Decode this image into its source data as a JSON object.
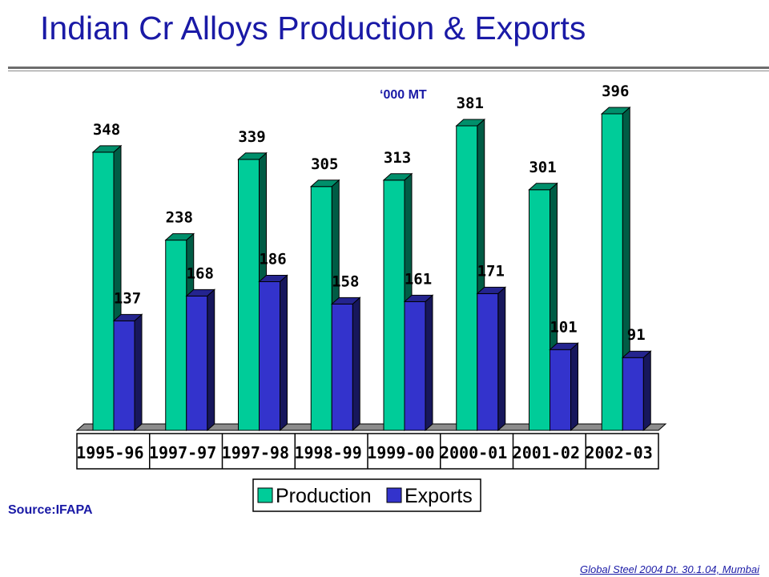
{
  "slide": {
    "title": "Indian Cr Alloys Production & Exports",
    "source": "Source:IFAPA",
    "footer": "Global Steel 2004 Dt. 30.1.04, Mumbai"
  },
  "colors": {
    "production": "#00cc99",
    "exports": "#3333cc",
    "title": "#1a1aa6"
  },
  "chart_data": {
    "type": "bar",
    "unit_label": "‘000 MT",
    "categories": [
      "1995-96",
      "1997-97",
      "1997-98",
      "1998-99",
      "1999-00",
      "2000-01",
      "2001-02",
      "2002-03"
    ],
    "series": [
      {
        "name": "Production",
        "values": [
          348,
          238,
          339,
          305,
          313,
          381,
          301,
          396
        ]
      },
      {
        "name": "Exports",
        "values": [
          137,
          168,
          186,
          158,
          161,
          171,
          101,
          91
        ]
      }
    ],
    "ylim": [
      0,
      400
    ],
    "grid": false,
    "legend_position": "bottom-center",
    "data_labels": true
  }
}
